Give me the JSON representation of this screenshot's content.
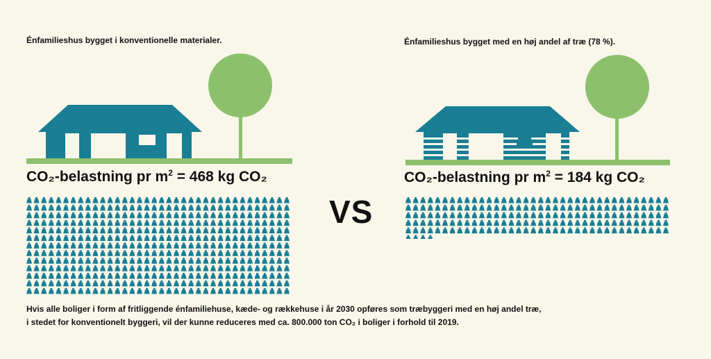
{
  "left": {
    "subtitle": "Énfamilieshus bygget i konventionelle materialer.",
    "stat_prefix": "CO₂-belastning pr m",
    "stat_sup": "2",
    "stat_suffix": " = 468 kg CO₂",
    "kg_icon_count": 468
  },
  "right": {
    "subtitle": "Énfamilieshus bygget med en høj andel af træ (78 %).",
    "stat_prefix": "CO₂-belastning pr m",
    "stat_sup": "2",
    "stat_suffix": " = 184 kg CO₂",
    "kg_icon_count": 184
  },
  "vs_label": "VS",
  "footnote": {
    "line1": "Hvis alle boliger i form af fritliggende énfamiliehuse, kæde- og rækkehuse i år 2030 opføres som træbyggeri med en høj andel træ,",
    "line2": "i stedet for konventionelt byggeri, vil der kunne reduceres med ca. 800.000 ton CO₂ i boliger i forhold til 2019."
  },
  "colors": {
    "background": "#f8f7ea",
    "house": "#1a7e94",
    "tree": "#8dc06c",
    "ground": "#8dc06c",
    "weight_icon": "#1a7e94"
  }
}
